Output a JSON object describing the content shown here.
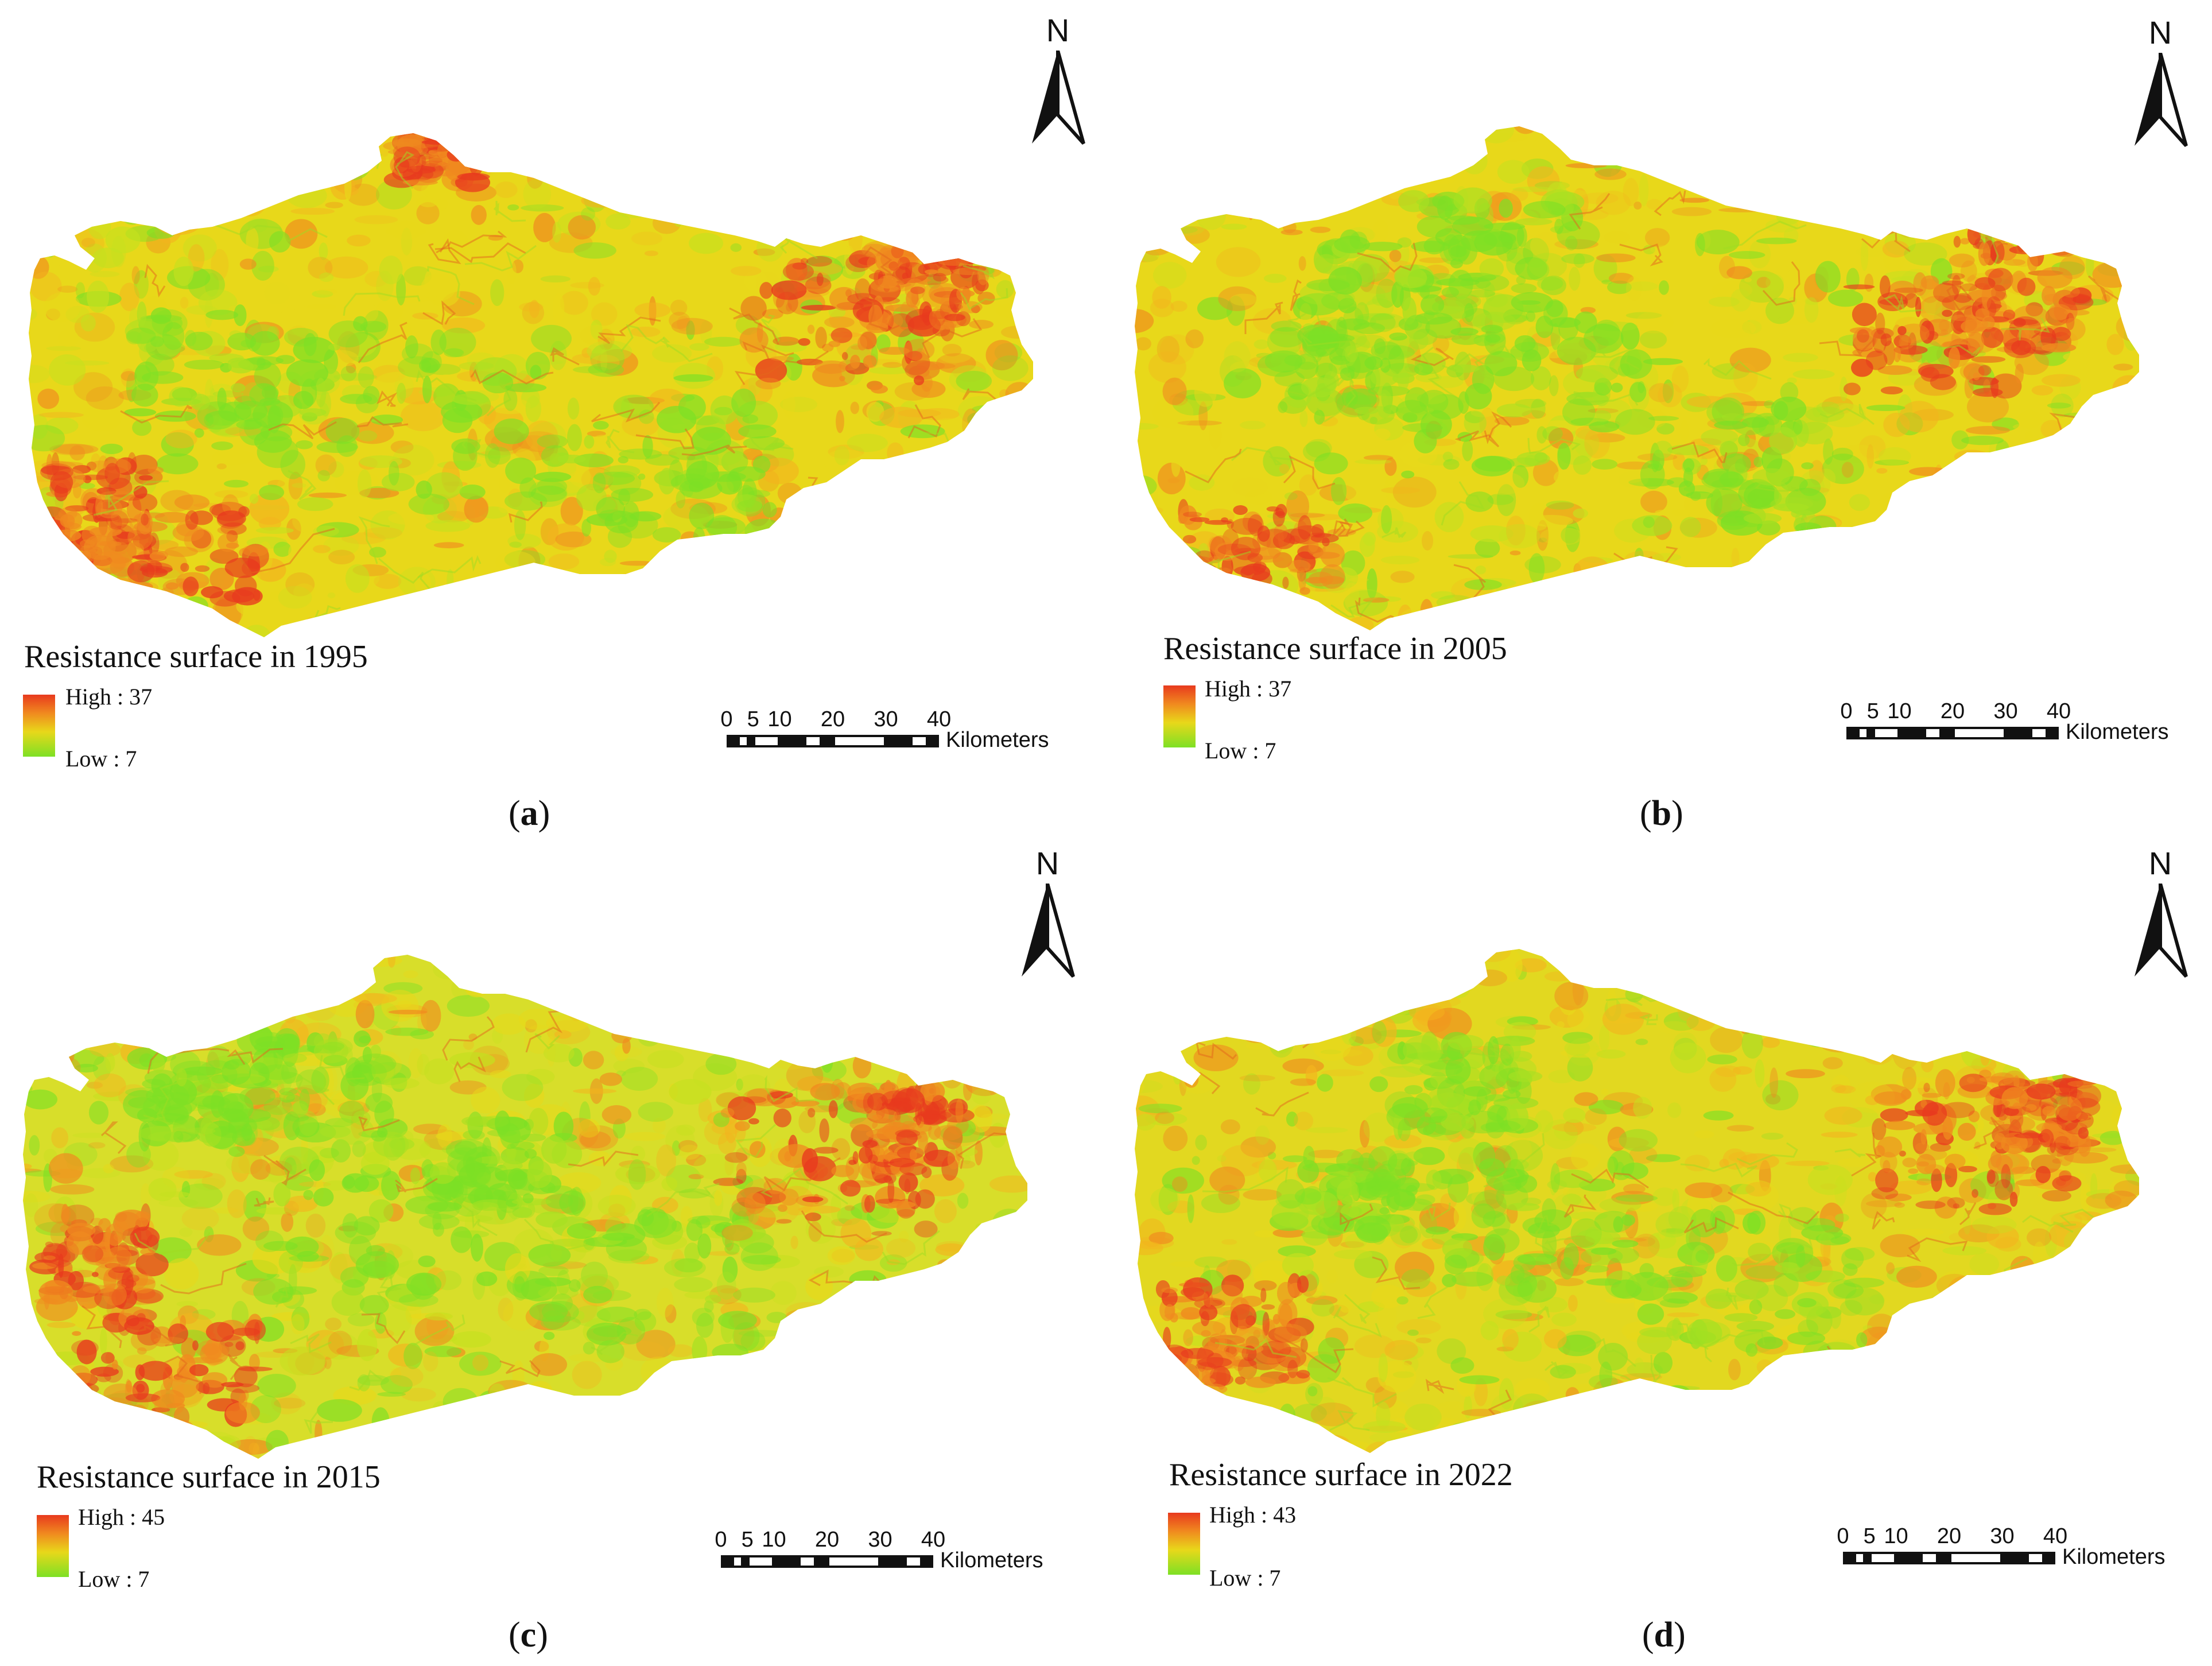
{
  "figure": {
    "panels": [
      {
        "id": "a",
        "label": "a",
        "legend_title": "Resistance surface in 1995",
        "legend_high": "High : 37",
        "legend_low": "Low : 7",
        "variant": "1995"
      },
      {
        "id": "b",
        "label": "b",
        "legend_title": "Resistance surface in 2005",
        "legend_high": "High : 37",
        "legend_low": "Low : 7",
        "variant": "2005"
      },
      {
        "id": "c",
        "label": "c",
        "legend_title": "Resistance surface in 2015",
        "legend_high": "High : 45",
        "legend_low": "Low : 7",
        "variant": "2015"
      },
      {
        "id": "d",
        "label": "d",
        "legend_title": "Resistance surface in 2022",
        "legend_high": "High : 43",
        "legend_low": "Low : 7",
        "variant": "2022"
      }
    ],
    "north_arrow_letter": "N",
    "scale_ticks": [
      "0",
      "5",
      "10",
      "20",
      "30",
      "40"
    ],
    "scale_unit": "Kilometers",
    "colors": {
      "high": "#e83a1e",
      "mid_orange": "#f08a1f",
      "mid_yellow": "#e8d81a",
      "low": "#7de025"
    }
  }
}
